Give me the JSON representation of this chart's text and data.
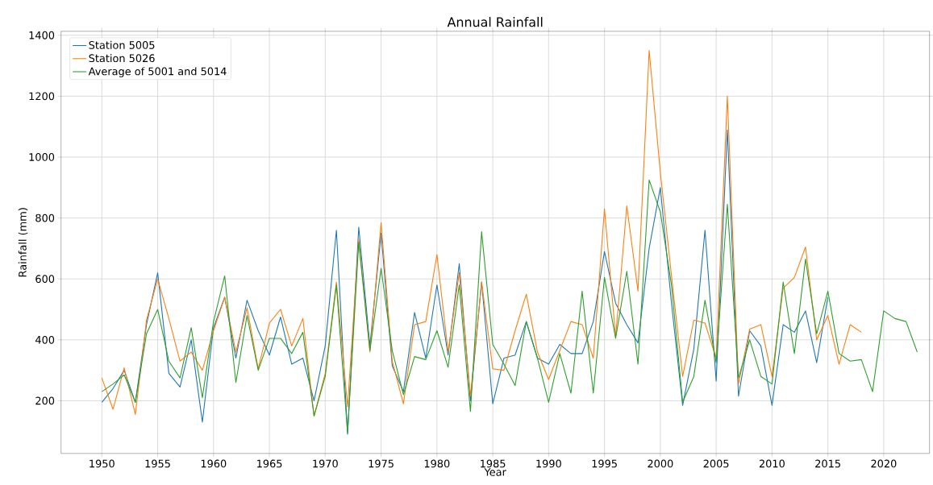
{
  "chart_data": {
    "type": "line",
    "title": "Annual Rainfall",
    "xlabel": "Year",
    "ylabel": "Rainfall (mm)",
    "x": [
      1950,
      1951,
      1952,
      1953,
      1954,
      1955,
      1956,
      1957,
      1958,
      1959,
      1960,
      1961,
      1962,
      1963,
      1964,
      1965,
      1966,
      1967,
      1968,
      1969,
      1970,
      1971,
      1972,
      1973,
      1974,
      1975,
      1976,
      1977,
      1978,
      1979,
      1980,
      1981,
      1982,
      1983,
      1984,
      1985,
      1986,
      1987,
      1988,
      1989,
      1990,
      1991,
      1992,
      1993,
      1994,
      1995,
      1996,
      1997,
      1998,
      1999,
      2000,
      2001,
      2002,
      2003,
      2004,
      2005,
      2006,
      2007,
      2008,
      2009,
      2010,
      2011,
      2012,
      2013,
      2014,
      2015,
      2016,
      2017,
      2018,
      2019,
      2020,
      2021,
      2022,
      2023
    ],
    "series": [
      {
        "name": "Station 5005",
        "color": "#1f77b4",
        "values": [
          195,
          240,
          300,
          195,
          450,
          620,
          290,
          245,
          400,
          130,
          440,
          540,
          340,
          530,
          430,
          350,
          475,
          320,
          340,
          200,
          380,
          760,
          90,
          770,
          380,
          750,
          315,
          230,
          490,
          340,
          580,
          350,
          650,
          200,
          590,
          190,
          340,
          350,
          460,
          340,
          320,
          385,
          355,
          355,
          460,
          690,
          520,
          450,
          390,
          700,
          900,
          520,
          185,
          370,
          760,
          265,
          1090,
          215,
          430,
          380,
          185,
          450,
          425,
          495,
          325,
          540,
          null,
          null,
          null,
          null,
          null,
          null,
          null,
          null
        ]
      },
      {
        "name": "Station 5026",
        "color": "#ff7f0e",
        "values": [
          275,
          172,
          308,
          155,
          465,
          600,
          470,
          330,
          360,
          300,
          430,
          540,
          360,
          505,
          305,
          455,
          500,
          380,
          470,
          150,
          290,
          590,
          180,
          730,
          360,
          785,
          330,
          190,
          450,
          460,
          680,
          360,
          620,
          215,
          590,
          305,
          300,
          430,
          550,
          360,
          270,
          365,
          460,
          450,
          340,
          830,
          410,
          840,
          560,
          1350,
          950,
          610,
          280,
          465,
          455,
          340,
          1200,
          255,
          435,
          450,
          280,
          570,
          605,
          705,
          400,
          480,
          320,
          450,
          425,
          null,
          null,
          null,
          null,
          null
        ]
      },
      {
        "name": "Average of 5001 and 5014",
        "color": "#2ca02c",
        "values": [
          230,
          255,
          285,
          195,
          420,
          500,
          330,
          275,
          440,
          210,
          460,
          610,
          260,
          480,
          300,
          405,
          405,
          355,
          425,
          150,
          280,
          580,
          95,
          720,
          365,
          635,
          365,
          220,
          345,
          335,
          430,
          310,
          580,
          165,
          755,
          385,
          320,
          250,
          460,
          340,
          195,
          355,
          225,
          560,
          225,
          605,
          405,
          625,
          320,
          925,
          820,
          580,
          195,
          280,
          530,
          325,
          845,
          275,
          400,
          280,
          255,
          590,
          355,
          665,
          420,
          560,
          355,
          330,
          335,
          230,
          495,
          470,
          460,
          360
        ]
      }
    ],
    "xlim": [
      1946.35,
      2024.1
    ],
    "ylim": [
      27,
      1413
    ],
    "xticks": [
      1950,
      1955,
      1960,
      1965,
      1970,
      1975,
      1980,
      1985,
      1990,
      1995,
      2000,
      2005,
      2010,
      2015,
      2020
    ],
    "yticks": [
      200,
      400,
      600,
      800,
      1000,
      1200,
      1400
    ],
    "grid": true,
    "legend": "top left",
    "line_style": "solid"
  }
}
